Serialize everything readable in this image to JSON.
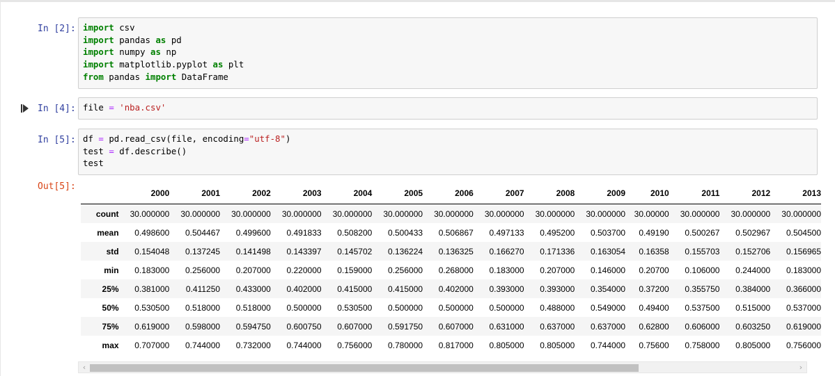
{
  "cells": [
    {
      "prompt": "In [2]:",
      "lines": [
        [
          {
            "t": "import",
            "c": "kw"
          },
          {
            "t": " csv"
          }
        ],
        [
          {
            "t": "import",
            "c": "kw"
          },
          {
            "t": " pandas "
          },
          {
            "t": "as",
            "c": "kw"
          },
          {
            "t": " pd"
          }
        ],
        [
          {
            "t": "import",
            "c": "kw"
          },
          {
            "t": " numpy "
          },
          {
            "t": "as",
            "c": "kw"
          },
          {
            "t": " np"
          }
        ],
        [
          {
            "t": "import",
            "c": "kw"
          },
          {
            "t": " matplotlib.pyplot "
          },
          {
            "t": "as",
            "c": "kw"
          },
          {
            "t": " plt"
          }
        ],
        [
          {
            "t": "from",
            "c": "kw"
          },
          {
            "t": " pandas "
          },
          {
            "t": "import",
            "c": "kw"
          },
          {
            "t": " DataFrame"
          }
        ]
      ]
    },
    {
      "prompt": "In [4]:",
      "lines": [
        [
          {
            "t": "file "
          },
          {
            "t": "=",
            "c": "op"
          },
          {
            "t": " "
          },
          {
            "t": "'nba.csv'",
            "c": "str"
          }
        ]
      ]
    },
    {
      "prompt": "In [5]:",
      "lines": [
        [
          {
            "t": "df "
          },
          {
            "t": "=",
            "c": "op"
          },
          {
            "t": " pd.read_csv(file, encoding"
          },
          {
            "t": "=",
            "c": "op"
          },
          {
            "t": "\"utf-8\"",
            "c": "str"
          },
          {
            "t": ")"
          }
        ],
        [
          {
            "t": "test "
          },
          {
            "t": "=",
            "c": "op"
          },
          {
            "t": " df.describe()"
          }
        ],
        [
          {
            "t": "test"
          }
        ]
      ]
    }
  ],
  "output": {
    "prompt": "Out[5]:",
    "columns": [
      "2000",
      "2001",
      "2002",
      "2003",
      "2004",
      "2005",
      "2006",
      "2007",
      "2008",
      "2009",
      "2010",
      "2011",
      "2012",
      "2013"
    ],
    "rows": [
      {
        "index": "count",
        "values": [
          "30.000000",
          "30.000000",
          "30.000000",
          "30.000000",
          "30.000000",
          "30.000000",
          "30.000000",
          "30.000000",
          "30.000000",
          "30.000000",
          "30.00000",
          "30.000000",
          "30.000000",
          "30.000000"
        ]
      },
      {
        "index": "mean",
        "values": [
          "0.498600",
          "0.504467",
          "0.499600",
          "0.491833",
          "0.508200",
          "0.500433",
          "0.506867",
          "0.497133",
          "0.495200",
          "0.503700",
          "0.49190",
          "0.500267",
          "0.502967",
          "0.504500"
        ]
      },
      {
        "index": "std",
        "values": [
          "0.154048",
          "0.137245",
          "0.141498",
          "0.143397",
          "0.145702",
          "0.136224",
          "0.136325",
          "0.166270",
          "0.171336",
          "0.163054",
          "0.16358",
          "0.155703",
          "0.152706",
          "0.156965"
        ]
      },
      {
        "index": "min",
        "values": [
          "0.183000",
          "0.256000",
          "0.207000",
          "0.220000",
          "0.159000",
          "0.256000",
          "0.268000",
          "0.183000",
          "0.207000",
          "0.146000",
          "0.20700",
          "0.106000",
          "0.244000",
          "0.183000"
        ]
      },
      {
        "index": "25%",
        "values": [
          "0.381000",
          "0.411250",
          "0.433000",
          "0.402000",
          "0.415000",
          "0.415000",
          "0.402000",
          "0.393000",
          "0.393000",
          "0.354000",
          "0.37200",
          "0.355750",
          "0.384000",
          "0.366000"
        ]
      },
      {
        "index": "50%",
        "values": [
          "0.530500",
          "0.518000",
          "0.518000",
          "0.500000",
          "0.530500",
          "0.500000",
          "0.500000",
          "0.500000",
          "0.488000",
          "0.549000",
          "0.49400",
          "0.537500",
          "0.515000",
          "0.537000"
        ]
      },
      {
        "index": "75%",
        "values": [
          "0.619000",
          "0.598000",
          "0.594750",
          "0.600750",
          "0.607000",
          "0.591750",
          "0.607000",
          "0.631000",
          "0.637000",
          "0.637000",
          "0.62800",
          "0.606000",
          "0.603250",
          "0.619000"
        ]
      },
      {
        "index": "max",
        "values": [
          "0.707000",
          "0.744000",
          "0.732000",
          "0.744000",
          "0.756000",
          "0.780000",
          "0.817000",
          "0.805000",
          "0.805000",
          "0.744000",
          "0.75600",
          "0.758000",
          "0.805000",
          "0.756000"
        ]
      }
    ]
  },
  "scrollbar": {
    "left_arrow": "‹",
    "right_arrow": "›"
  },
  "icons": {
    "run": "step-run-icon"
  }
}
